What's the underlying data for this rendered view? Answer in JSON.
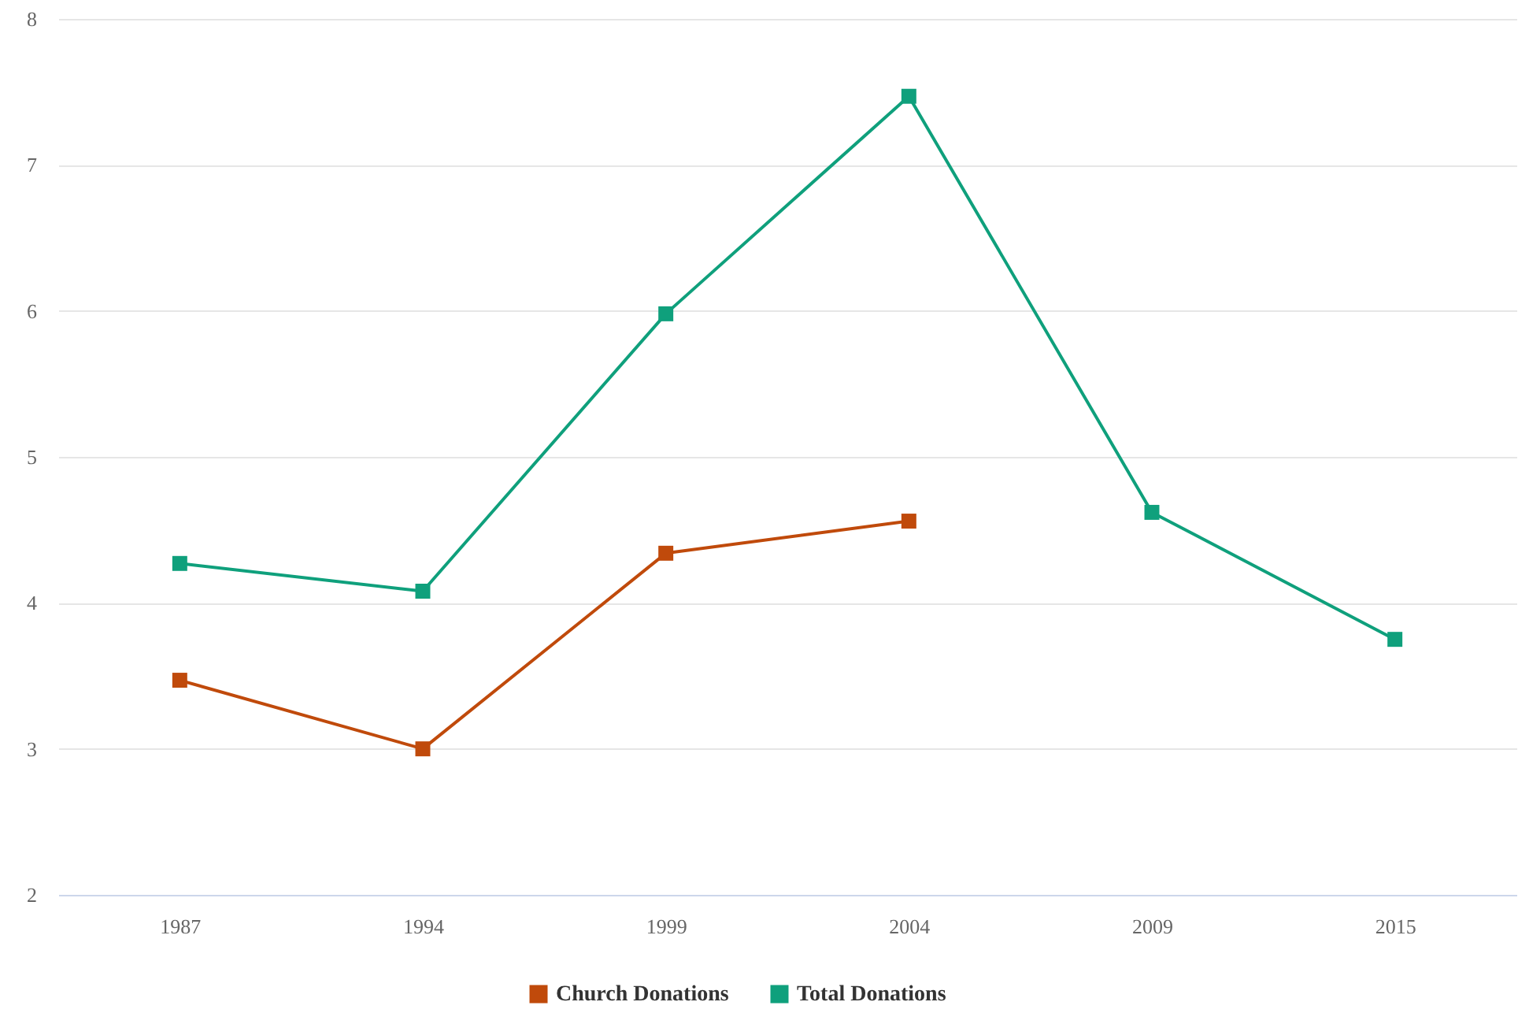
{
  "chart_data": {
    "type": "line",
    "categories": [
      "1987",
      "1994",
      "1999",
      "2004",
      "2009",
      "2015"
    ],
    "series": [
      {
        "name": "Church Donations",
        "color": "#c04a0b",
        "values": [
          3.47,
          3.0,
          4.34,
          4.56,
          null,
          null
        ]
      },
      {
        "name": "Total Donations",
        "color": "#0fa07c",
        "values": [
          4.27,
          4.08,
          5.98,
          7.47,
          4.62,
          3.75
        ]
      }
    ],
    "ylim": [
      2,
      8
    ],
    "yticks": [
      2,
      3,
      4,
      5,
      6,
      7,
      8
    ],
    "grid": "y",
    "legend": "bottom",
    "marker": "square",
    "line_style": "solid"
  }
}
